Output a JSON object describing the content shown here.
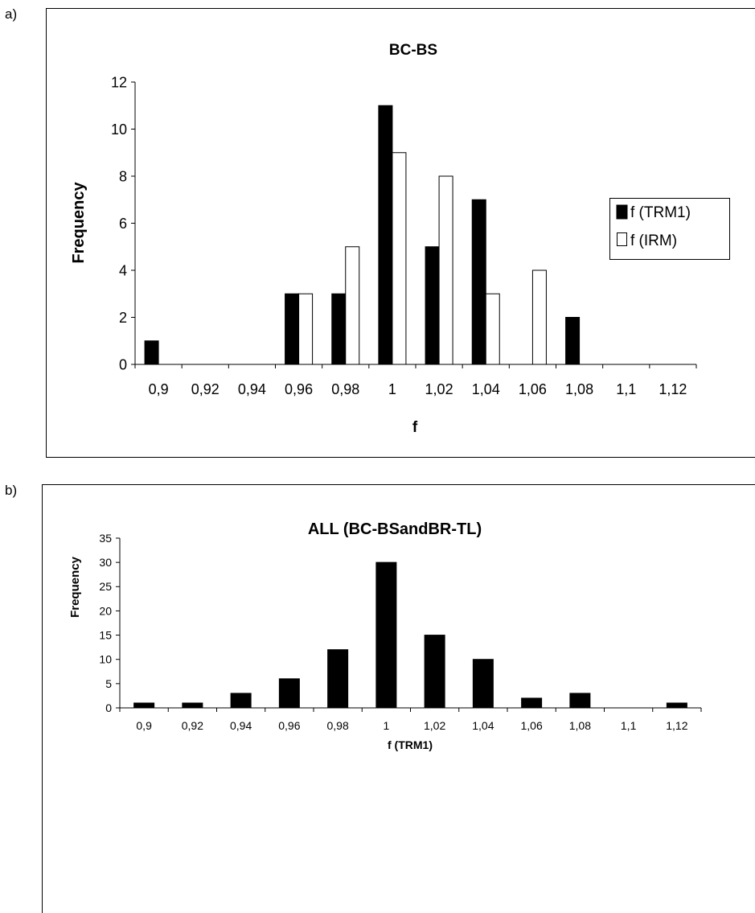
{
  "panels": {
    "a": {
      "label": "a)"
    },
    "b": {
      "label": "b)"
    }
  },
  "colors": {
    "trm1": "#000000",
    "irm": "#ffffff",
    "axis": "#000000",
    "frame": "#000000"
  },
  "chart_data": [
    {
      "type": "bar",
      "title": "BC-BS",
      "xlabel": "f",
      "ylabel": "Frequency",
      "categories": [
        "0,9",
        "0,92",
        "0,94",
        "0,96",
        "0,98",
        "1",
        "1,02",
        "1,04",
        "1,06",
        "1,08",
        "1,1",
        "1,12"
      ],
      "ylim": [
        0,
        12
      ],
      "yticks": [
        "0",
        "2",
        "4",
        "6",
        "8",
        "10",
        "12"
      ],
      "grid": false,
      "legend_position": "right",
      "series": [
        {
          "name": "f (TRM1)",
          "values": [
            1,
            0,
            0,
            3,
            3,
            11,
            5,
            7,
            0,
            2,
            0,
            0
          ]
        },
        {
          "name": "f (IRM)",
          "values": [
            0,
            0,
            0,
            3,
            5,
            9,
            8,
            3,
            4,
            0,
            0,
            0
          ]
        }
      ]
    },
    {
      "type": "bar",
      "title": "ALL (BC-BSandBR-TL)",
      "xlabel": "f (TRM1)",
      "ylabel": "Frequency",
      "categories": [
        "0,9",
        "0,92",
        "0,94",
        "0,96",
        "0,98",
        "1",
        "1,02",
        "1,04",
        "1,06",
        "1,08",
        "1,1",
        "1,12"
      ],
      "ylim": [
        0,
        35
      ],
      "yticks": [
        "0",
        "5",
        "10",
        "15",
        "20",
        "25",
        "30",
        "35"
      ],
      "grid": false,
      "legend_position": "none",
      "series": [
        {
          "values": [
            1,
            1,
            3,
            6,
            12,
            30,
            15,
            10,
            2,
            3,
            0,
            1
          ]
        }
      ]
    }
  ]
}
